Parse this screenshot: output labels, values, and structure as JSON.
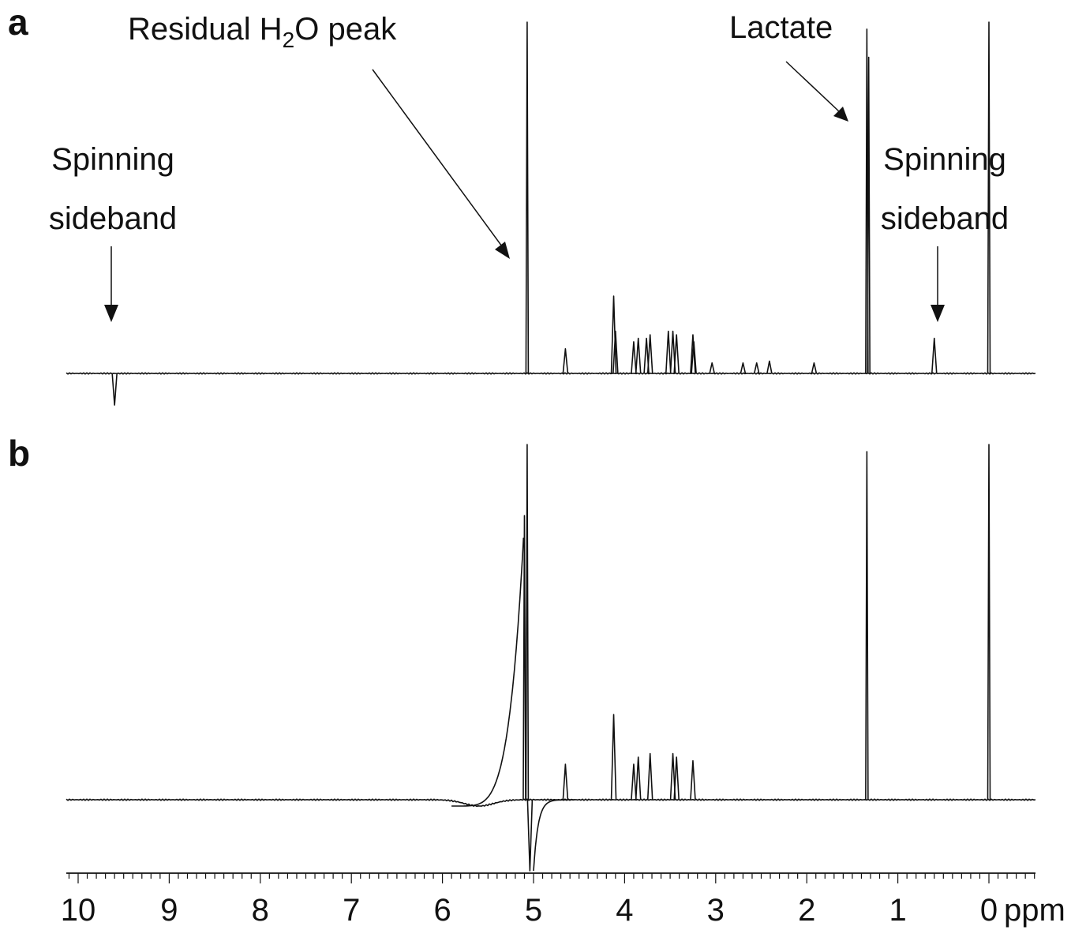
{
  "chart_data": [
    {
      "panel": "a",
      "type": "line",
      "xlabel": "ppm",
      "xlim": [
        10.5,
        -0.5
      ],
      "x_reversed": true,
      "annotations": [
        {
          "id": "sideband-left",
          "lines": [
            "Spinning",
            "sideband"
          ],
          "x": 9.6
        },
        {
          "id": "water",
          "lines": [
            "Residual H",
            "2",
            "O peak"
          ],
          "x": 5.0
        },
        {
          "id": "lactate",
          "lines": [
            "Lactate"
          ],
          "x": 1.35
        },
        {
          "id": "sideband-right",
          "lines": [
            "Spinning",
            "sideband"
          ],
          "x": 0.6
        }
      ],
      "peaks": [
        {
          "x": 9.6,
          "y": -0.09
        },
        {
          "x": 5.07,
          "y": 1.0
        },
        {
          "x": 4.65,
          "y": 0.07
        },
        {
          "x": 4.12,
          "y": 0.22
        },
        {
          "x": 4.1,
          "y": 0.12
        },
        {
          "x": 3.9,
          "y": 0.09
        },
        {
          "x": 3.85,
          "y": 0.1
        },
        {
          "x": 3.76,
          "y": 0.1
        },
        {
          "x": 3.72,
          "y": 0.11
        },
        {
          "x": 3.52,
          "y": 0.12
        },
        {
          "x": 3.47,
          "y": 0.12
        },
        {
          "x": 3.43,
          "y": 0.11
        },
        {
          "x": 3.25,
          "y": 0.11
        },
        {
          "x": 3.24,
          "y": 0.09
        },
        {
          "x": 3.04,
          "y": 0.03
        },
        {
          "x": 2.7,
          "y": 0.03
        },
        {
          "x": 2.55,
          "y": 0.03
        },
        {
          "x": 2.41,
          "y": 0.035
        },
        {
          "x": 1.92,
          "y": 0.03
        },
        {
          "x": 1.34,
          "y": 0.98
        },
        {
          "x": 1.32,
          "y": 0.9
        },
        {
          "x": 0.6,
          "y": 0.1
        },
        {
          "x": 0.0,
          "y": 1.0
        }
      ]
    },
    {
      "panel": "b",
      "type": "line",
      "xlabel": "ppm",
      "xlim": [
        10.5,
        -0.5
      ],
      "x_reversed": true,
      "peaks": [
        {
          "x": 5.1,
          "y": 0.8
        },
        {
          "x": 5.07,
          "y": 1.0
        },
        {
          "x": 5.04,
          "y": -0.2
        },
        {
          "x": 4.65,
          "y": 0.1
        },
        {
          "x": 4.12,
          "y": 0.24
        },
        {
          "x": 3.9,
          "y": 0.1
        },
        {
          "x": 3.85,
          "y": 0.12
        },
        {
          "x": 3.72,
          "y": 0.13
        },
        {
          "x": 3.47,
          "y": 0.13
        },
        {
          "x": 3.43,
          "y": 0.12
        },
        {
          "x": 3.25,
          "y": 0.11
        },
        {
          "x": 1.34,
          "y": 0.98
        },
        {
          "x": 0.0,
          "y": 1.0
        }
      ]
    }
  ],
  "x_axis": {
    "ticks": [
      10,
      9,
      8,
      7,
      6,
      5,
      4,
      3,
      2,
      1,
      0
    ],
    "labels": [
      "10",
      "9",
      "8",
      "7",
      "6",
      "5",
      "4",
      "3",
      "2",
      "1",
      "0"
    ],
    "unit": "ppm",
    "minor_step": 0.1
  }
}
